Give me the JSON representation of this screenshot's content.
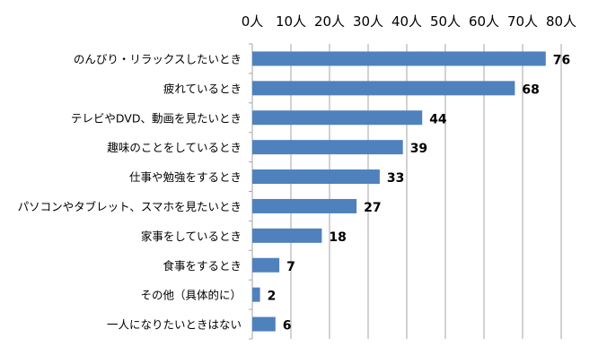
{
  "chart_data": {
    "type": "bar",
    "orientation": "horizontal",
    "categories": [
      "のんびり・リラックスしたいとき",
      "疲れているとき",
      "テレビやDVD、動画を見たいとき",
      "趣味のことをしているとき",
      "仕事や勉強をするとき",
      "パソコンやタブレット、スマホを見たいとき",
      "家事をしているとき",
      "食事をするとき",
      "その他（具体的に）",
      "一人になりたいときはない"
    ],
    "values": [
      76,
      68,
      44,
      39,
      33,
      27,
      18,
      7,
      2,
      6
    ],
    "xlim": [
      0,
      80
    ],
    "ticks": [
      0,
      10,
      20,
      30,
      40,
      50,
      60,
      70,
      80
    ],
    "tick_labels": [
      "0人",
      "10人",
      "20人",
      "30人",
      "40人",
      "50人",
      "60人",
      "70人",
      "80人"
    ],
    "axis_position": "top",
    "grid": true,
    "bar_color": "#4f81bd",
    "grid_color": "#a6a6a6"
  }
}
